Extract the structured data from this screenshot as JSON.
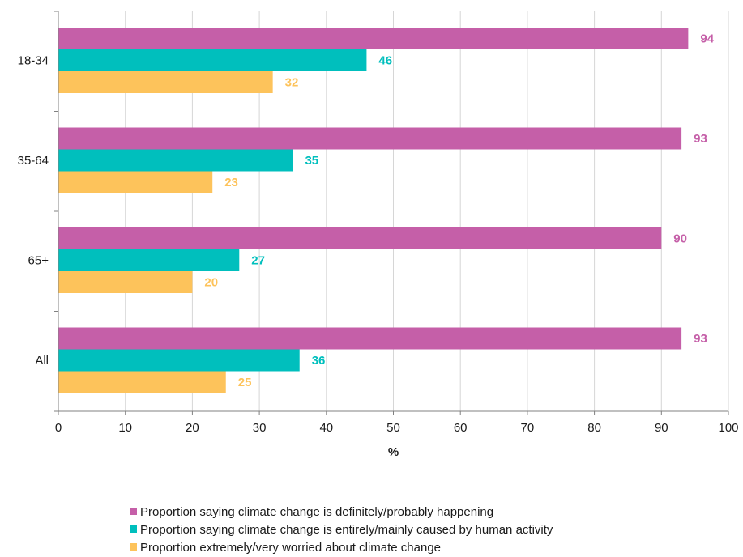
{
  "chart_data": {
    "type": "bar",
    "orientation": "horizontal",
    "categories": [
      "18-34",
      "35-64",
      "65+",
      "All"
    ],
    "series": [
      {
        "name": "Proportion saying climate change is definitely/probably happening",
        "color": "#C55FA8",
        "values": [
          94,
          93,
          90,
          93
        ]
      },
      {
        "name": "Proportion saying climate change is entirely/mainly caused by human activity",
        "color": "#00BFBD",
        "values": [
          46,
          35,
          27,
          36
        ]
      },
      {
        "name": "Proportion extremely/very worried about climate change",
        "color": "#FDC35B",
        "values": [
          32,
          23,
          20,
          25
        ]
      }
    ],
    "title": "",
    "xlabel": "%",
    "ylabel": "",
    "xlim": [
      0,
      100
    ],
    "xticks": [
      "0",
      "10",
      "20",
      "30",
      "40",
      "50",
      "60",
      "70",
      "80",
      "90",
      "100"
    ],
    "grid": true,
    "data_labels": true,
    "legend_position": "bottom"
  }
}
